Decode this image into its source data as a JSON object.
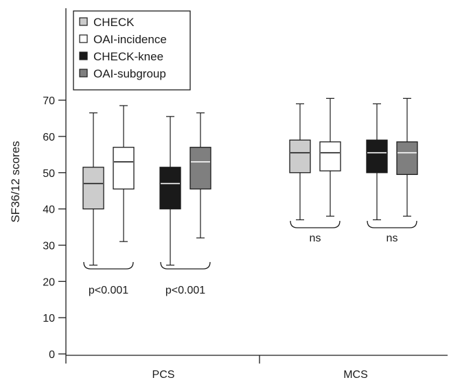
{
  "chart_data": {
    "type": "box",
    "title": "",
    "xlabel": "",
    "ylabel": "SF36/12 scores",
    "ylim": [
      0,
      70
    ],
    "yticks": [
      0,
      10,
      20,
      30,
      40,
      50,
      60,
      70
    ],
    "grid": false,
    "legend_position": "top-left",
    "categories": [
      "PCS",
      "MCS"
    ],
    "series": [
      {
        "name": "CHECK",
        "color": "#cccccc",
        "median_color": "#1a1a1a"
      },
      {
        "name": "OAI-incidence",
        "color": "#ffffff",
        "median_color": "#1a1a1a"
      },
      {
        "name": "CHECK-knee",
        "color": "#1a1a1a",
        "median_color": "#ffffff"
      },
      {
        "name": "OAI-subgroup",
        "color": "#7f7f7f",
        "median_color": "#ffffff"
      }
    ],
    "boxes": {
      "PCS": [
        {
          "series": "CHECK",
          "min": 24.5,
          "q1": 40,
          "median": 47,
          "q3": 51.5,
          "max": 66.5
        },
        {
          "series": "OAI-incidence",
          "min": 31,
          "q1": 45.5,
          "median": 53,
          "q3": 57,
          "max": 68.5
        },
        {
          "series": "CHECK-knee",
          "min": 24.5,
          "q1": 40,
          "median": 47,
          "q3": 51.5,
          "max": 65.5
        },
        {
          "series": "OAI-subgroup",
          "min": 32,
          "q1": 45.5,
          "median": 53,
          "q3": 57,
          "max": 66.5
        }
      ],
      "MCS": [
        {
          "series": "CHECK",
          "min": 37,
          "q1": 50,
          "median": 55.5,
          "q3": 59,
          "max": 69
        },
        {
          "series": "OAI-incidence",
          "min": 38,
          "q1": 50.5,
          "median": 55.5,
          "q3": 58.5,
          "max": 70.5
        },
        {
          "series": "CHECK-knee",
          "min": 37,
          "q1": 50,
          "median": 55.5,
          "q3": 59,
          "max": 69
        },
        {
          "series": "OAI-subgroup",
          "min": 38,
          "q1": 49.5,
          "median": 55.5,
          "q3": 58.5,
          "max": 70.5
        }
      ]
    },
    "annotations": [
      {
        "category": "PCS",
        "pair": [
          "CHECK",
          "OAI-incidence"
        ],
        "text": "p<0.001"
      },
      {
        "category": "PCS",
        "pair": [
          "CHECK-knee",
          "OAI-subgroup"
        ],
        "text": "p<0.001"
      },
      {
        "category": "MCS",
        "pair": [
          "CHECK",
          "OAI-incidence"
        ],
        "text": "ns"
      },
      {
        "category": "MCS",
        "pair": [
          "CHECK-knee",
          "OAI-subgroup"
        ],
        "text": "ns"
      }
    ]
  }
}
